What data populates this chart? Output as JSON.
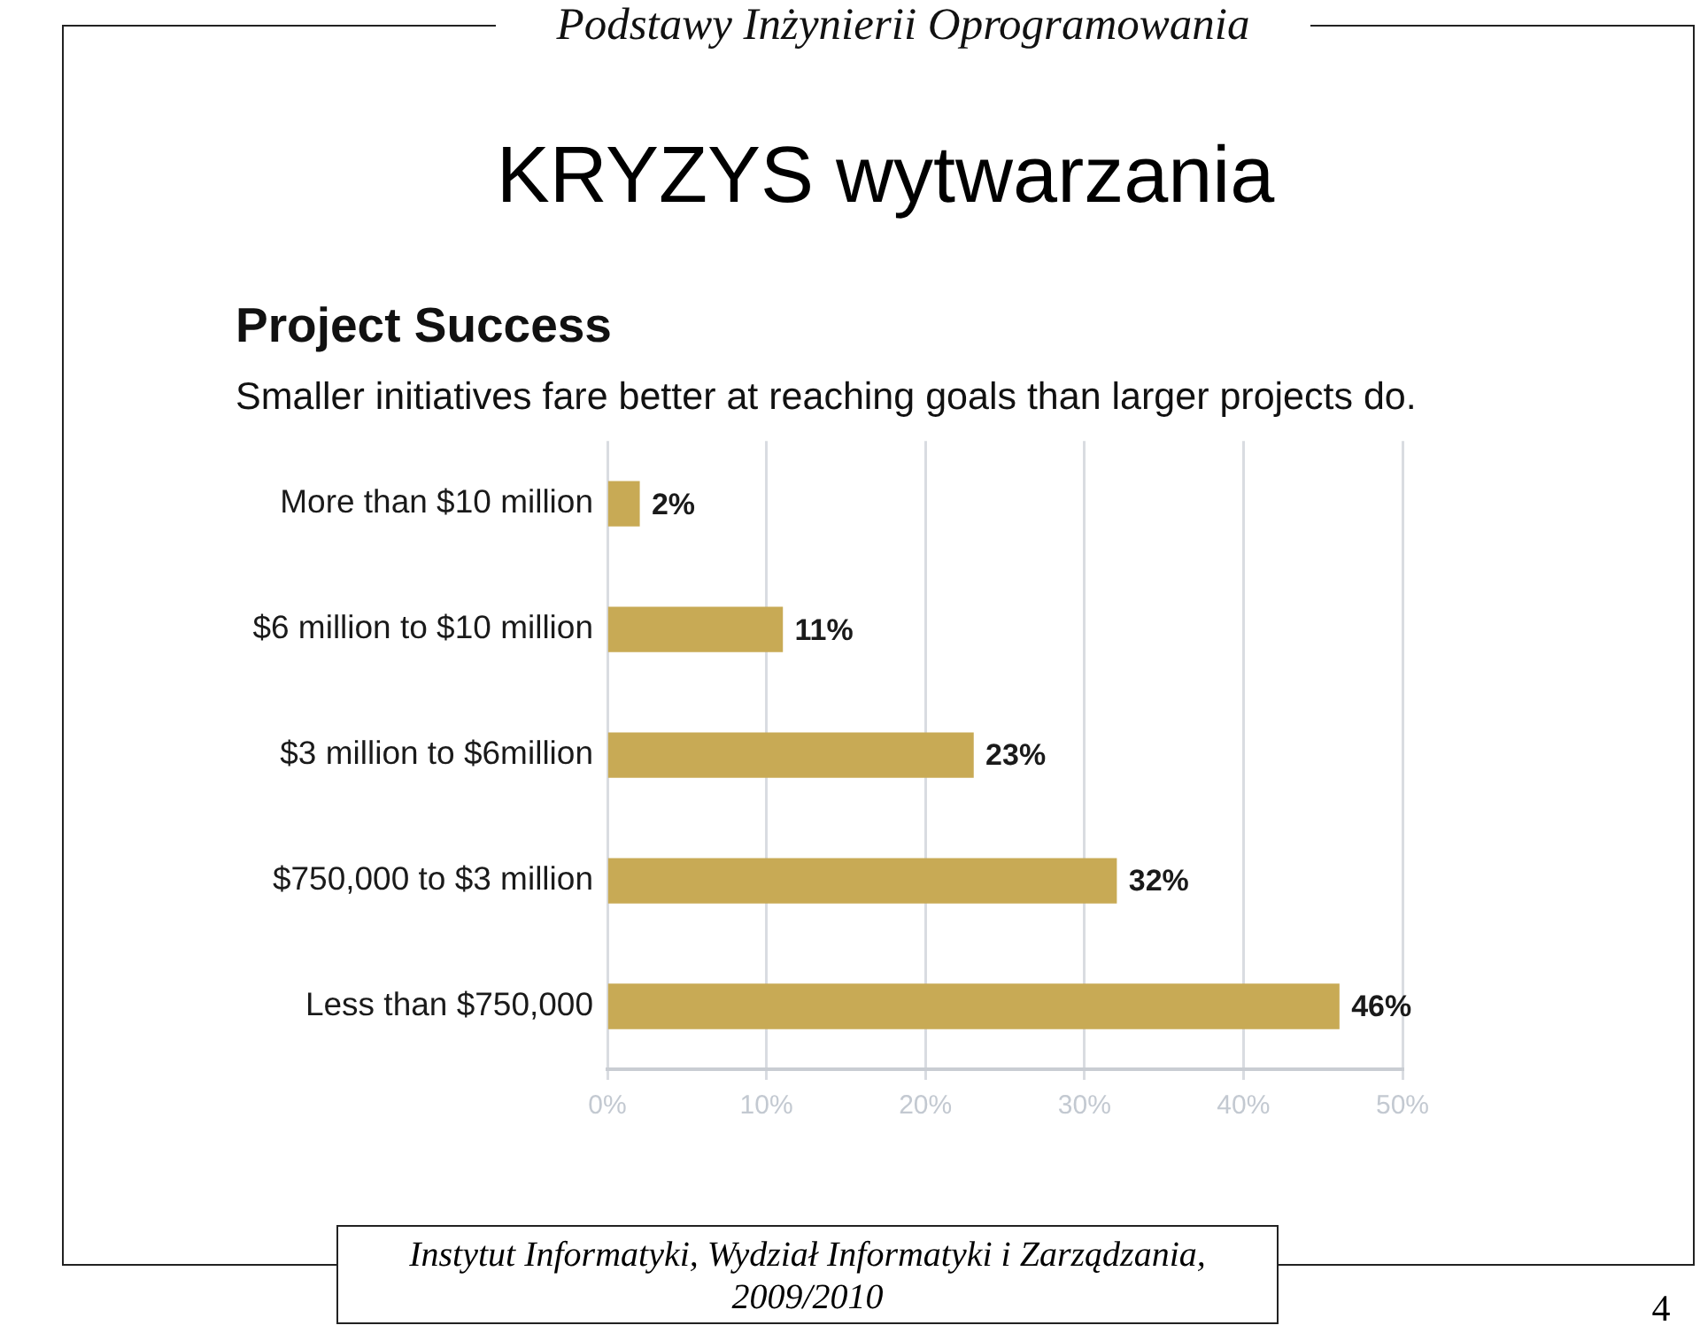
{
  "chart_data": {
    "type": "bar",
    "orientation": "horizontal",
    "title": "Project Success",
    "subtitle": "Smaller initiatives fare better at reaching goals than larger projects do.",
    "categories": [
      "More than $10 million",
      "$6 million to $10 million",
      "$3 million to $6million",
      "$750,000 to $3 million",
      "Less than $750,000"
    ],
    "values": [
      2,
      11,
      23,
      32,
      46
    ],
    "value_labels": [
      "2%",
      "11%",
      "23%",
      "32%",
      "46%"
    ],
    "color": "#c8aa55",
    "xlim": [
      0,
      50
    ],
    "xticks": [
      {
        "value": 0,
        "label": "0%"
      },
      {
        "value": 10,
        "label": "10%"
      },
      {
        "value": 20,
        "label": "20%"
      },
      {
        "value": 30,
        "label": "30%"
      },
      {
        "value": 40,
        "label": "40%"
      },
      {
        "value": 50,
        "label": "50%"
      }
    ],
    "grid": "x",
    "annotations": [
      "Podstawy Inżynierii Oprogramowania",
      "KRYZYS wytwarzania",
      "Instytut Informatyki, Wydział Informatyki i Zarządzania, 2009/2010",
      "4"
    ]
  }
}
